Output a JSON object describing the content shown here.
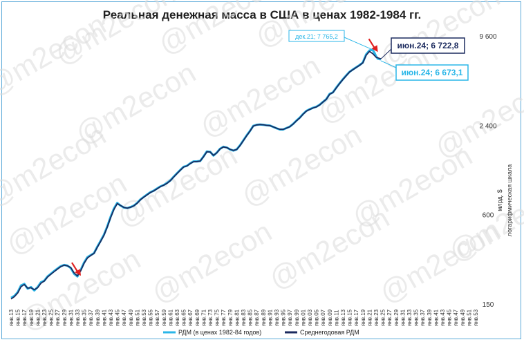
{
  "chart_data": {
    "type": "line",
    "title": "Реальная денежная масса в США в ценах 1982-1984 гг.",
    "ylabel": "млрд. $",
    "ylabel2": "логарифмическая шкала",
    "yscale": "log",
    "yticks": [
      150,
      600,
      2400,
      9600
    ],
    "ytick_labels": [
      "150",
      "600",
      "2 400",
      "9 600"
    ],
    "ylim": [
      150,
      9600
    ],
    "xlim": [
      1913,
      2053
    ],
    "xtick_labels": [
      "янв.13",
      "янв.15",
      "янв.17",
      "янв.19",
      "янв.21",
      "янв.23",
      "янв.25",
      "янв.27",
      "янв.29",
      "янв.31",
      "янв.33",
      "янв.35",
      "янв.37",
      "янв.39",
      "янв.41",
      "янв.43",
      "янв.45",
      "янв.47",
      "янв.49",
      "янв.51",
      "янв.53",
      "янв.55",
      "янв.57",
      "янв.59",
      "янв.61",
      "янв.63",
      "янв.65",
      "янв.67",
      "янв.69",
      "янв.71",
      "янв.73",
      "янв.75",
      "янв.77",
      "янв.79",
      "янв.81",
      "янв.83",
      "янв.85",
      "янв.87",
      "янв.89",
      "янв.91",
      "янв.93",
      "янв.95",
      "янв.97",
      "янв.99",
      "янв.01",
      "янв.03",
      "янв.05",
      "янв.07",
      "янв.09",
      "янв.11",
      "янв.13",
      "янв.15",
      "янв.17",
      "янв.19",
      "янв.21",
      "янв.23",
      "янв.25",
      "янв.27",
      "янв.29",
      "янв.31",
      "янв.33",
      "янв.35",
      "янв.37",
      "янв.39",
      "янв.41",
      "янв.43",
      "янв.45",
      "янв.47",
      "янв.49",
      "янв.51",
      "янв.53"
    ],
    "grid": false,
    "legend_position": "bottom",
    "series": [
      {
        "name": "РДМ (в ценах 1982-84 годов)",
        "color": "#29b6e8",
        "x": [
          1913,
          1914,
          1915,
          1916,
          1917,
          1918,
          1919,
          1920,
          1921,
          1922,
          1923,
          1924,
          1925,
          1926,
          1927,
          1928,
          1929,
          1930,
          1931,
          1932,
          1933,
          1934,
          1935,
          1936,
          1937,
          1938,
          1939,
          1940,
          1941,
          1942,
          1943,
          1944,
          1945,
          1946,
          1947,
          1948,
          1949,
          1950,
          1951,
          1952,
          1953,
          1954,
          1955,
          1956,
          1957,
          1958,
          1959,
          1960,
          1961,
          1962,
          1963,
          1964,
          1965,
          1966,
          1967,
          1968,
          1969,
          1970,
          1971,
          1972,
          1973,
          1974,
          1975,
          1976,
          1977,
          1978,
          1979,
          1980,
          1981,
          1982,
          1983,
          1984,
          1985,
          1986,
          1987,
          1988,
          1989,
          1990,
          1991,
          1992,
          1993,
          1994,
          1995,
          1996,
          1997,
          1998,
          1999,
          2000,
          2001,
          2002,
          2003,
          2004,
          2005,
          2006,
          2007,
          2008,
          2009,
          2010,
          2011,
          2012,
          2013,
          2014,
          2015,
          2016,
          2017,
          2018,
          2019,
          2020,
          2021,
          2021.92,
          2022.5,
          2023,
          2023.5,
          2024.45
        ],
        "values": [
          165,
          170,
          180,
          200,
          205,
          190,
          195,
          185,
          195,
          210,
          215,
          230,
          240,
          250,
          260,
          270,
          275,
          272,
          262,
          240,
          230,
          255,
          285,
          310,
          320,
          330,
          365,
          400,
          440,
          500,
          580,
          660,
          720,
          690,
          670,
          665,
          675,
          690,
          720,
          760,
          790,
          820,
          850,
          870,
          900,
          930,
          950,
          980,
          1020,
          1080,
          1140,
          1200,
          1260,
          1280,
          1330,
          1370,
          1370,
          1380,
          1480,
          1600,
          1590,
          1500,
          1570,
          1670,
          1720,
          1700,
          1650,
          1620,
          1650,
          1760,
          1900,
          2050,
          2200,
          2380,
          2420,
          2430,
          2420,
          2400,
          2390,
          2340,
          2290,
          2250,
          2250,
          2300,
          2350,
          2450,
          2580,
          2700,
          2860,
          3000,
          3080,
          3150,
          3200,
          3300,
          3450,
          3600,
          3900,
          4000,
          4300,
          4600,
          4900,
          5200,
          5500,
          5700,
          5900,
          6100,
          6350,
          7200,
          7650,
          7765.2,
          7400,
          7000,
          6750,
          6673.1
        ]
      },
      {
        "name": "Среднегодовая РДМ",
        "color": "#1b2a5e",
        "x": [
          1913,
          1914,
          1915,
          1916,
          1917,
          1918,
          1919,
          1920,
          1921,
          1922,
          1923,
          1924,
          1925,
          1926,
          1927,
          1928,
          1929,
          1930,
          1931,
          1932,
          1933,
          1934,
          1935,
          1936,
          1937,
          1938,
          1939,
          1940,
          1941,
          1942,
          1943,
          1944,
          1945,
          1946,
          1947,
          1948,
          1949,
          1950,
          1951,
          1952,
          1953,
          1954,
          1955,
          1956,
          1957,
          1958,
          1959,
          1960,
          1961,
          1962,
          1963,
          1964,
          1965,
          1966,
          1967,
          1968,
          1969,
          1970,
          1971,
          1972,
          1973,
          1974,
          1975,
          1976,
          1977,
          1978,
          1979,
          1980,
          1981,
          1982,
          1983,
          1984,
          1985,
          1986,
          1987,
          1988,
          1989,
          1990,
          1991,
          1992,
          1993,
          1994,
          1995,
          1996,
          1997,
          1998,
          1999,
          2000,
          2001,
          2002,
          2003,
          2004,
          2005,
          2006,
          2007,
          2008,
          2009,
          2010,
          2011,
          2012,
          2013,
          2014,
          2015,
          2016,
          2017,
          2018,
          2019,
          2020,
          2021,
          2022,
          2023,
          2024.45
        ],
        "values": [
          162,
          168,
          178,
          196,
          203,
          192,
          193,
          187,
          193,
          207,
          214,
          228,
          238,
          248,
          258,
          268,
          274,
          271,
          264,
          243,
          232,
          252,
          282,
          306,
          318,
          329,
          362,
          396,
          436,
          495,
          572,
          650,
          712,
          692,
          671,
          664,
          673,
          688,
          716,
          756,
          787,
          816,
          846,
          867,
          896,
          926,
          947,
          976,
          1016,
          1075,
          1135,
          1195,
          1255,
          1277,
          1325,
          1365,
          1368,
          1378,
          1472,
          1590,
          1585,
          1505,
          1565,
          1663,
          1715,
          1698,
          1652,
          1625,
          1648,
          1752,
          1890,
          2040,
          2190,
          2370,
          2415,
          2428,
          2418,
          2398,
          2388,
          2342,
          2292,
          2253,
          2252,
          2298,
          2348,
          2445,
          2570,
          2690,
          2850,
          2990,
          3070,
          3140,
          3190,
          3290,
          3440,
          3590,
          3880,
          3990,
          4280,
          4580,
          4880,
          5180,
          5480,
          5680,
          5880,
          6080,
          6320,
          7100,
          7550,
          7300,
          6900,
          6722.8
        ]
      }
    ],
    "annotations": [
      {
        "text": "дек.21; 7 765,2",
        "x": 2021.92,
        "y": 7765.2,
        "color": "#29b6e8"
      },
      {
        "text": "июн.24; 6 722,8",
        "x": 2024.45,
        "y": 6722.8,
        "color": "#1b2a5e"
      },
      {
        "text": "июн.24; 6 673,1",
        "x": 2024.45,
        "y": 6673.1,
        "color": "#29b6e8"
      }
    ],
    "arrows": [
      {
        "x": 1933,
        "color": "#e02020"
      },
      {
        "x": 2022.5,
        "color": "#e02020"
      }
    ]
  },
  "watermark": "@m2econ"
}
